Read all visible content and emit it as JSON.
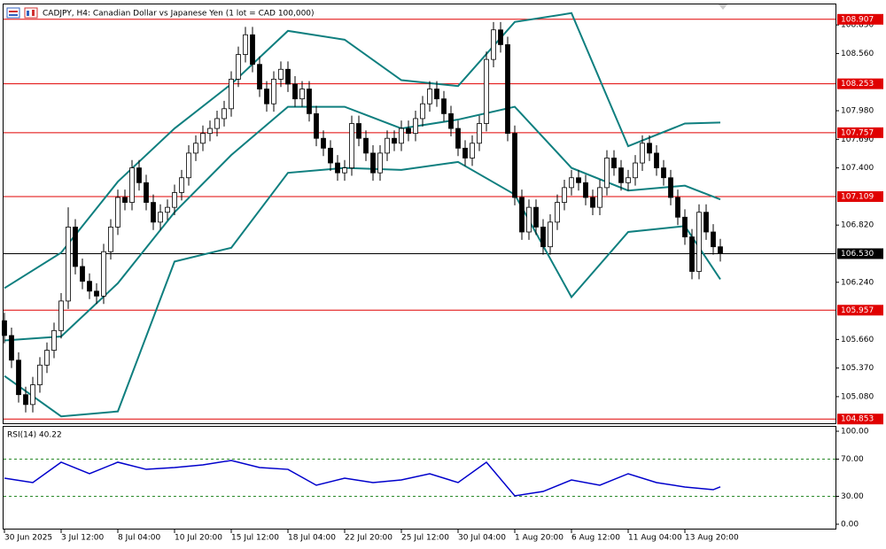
{
  "chart_data": [
    {
      "type": "candlestick",
      "title": "CADJPY, H4:  Canadian Dollar vs Japanese Yen (1 lot = CAD 100,000)",
      "up_color": "#ffffff",
      "down_color": "#000000",
      "open": [
        105.85,
        105.7,
        105.45,
        105.1,
        105.0,
        105.2,
        105.4,
        105.55,
        105.75,
        106.05,
        106.8,
        106.4,
        106.25,
        106.15,
        106.1,
        106.55,
        106.8,
        107.1,
        107.05,
        107.4,
        107.25,
        107.05,
        106.85,
        106.95,
        107.0,
        107.15,
        107.3,
        107.55,
        107.65,
        107.75,
        107.8,
        107.9,
        108.0,
        108.3,
        108.55,
        108.75,
        108.45,
        108.2,
        108.05,
        108.3,
        108.4,
        108.25,
        108.1,
        108.2,
        107.95,
        107.7,
        107.6,
        107.45,
        107.35,
        107.4,
        107.85,
        107.7,
        107.55,
        107.35,
        107.55,
        107.7,
        107.65,
        107.8,
        107.75,
        107.9,
        108.05,
        108.2,
        108.1,
        107.95,
        107.8,
        107.6,
        107.5,
        107.65,
        107.85,
        108.5,
        108.8,
        108.65,
        107.75,
        107.1,
        106.75,
        107.0,
        106.8,
        106.6,
        106.85,
        107.05,
        107.2,
        107.3,
        107.25,
        107.1,
        107.0,
        107.2,
        107.5,
        107.4,
        107.25,
        107.3,
        107.45,
        107.65,
        107.55,
        107.4,
        107.3,
        107.1,
        106.9,
        106.7,
        106.35,
        106.95,
        106.75,
        106.6
      ],
      "high": [
        105.93,
        105.78,
        105.53,
        105.18,
        105.28,
        105.48,
        105.63,
        105.83,
        106.13,
        107.0,
        106.88,
        106.48,
        106.33,
        106.23,
        106.63,
        106.88,
        107.18,
        107.18,
        107.48,
        107.48,
        107.33,
        107.13,
        107.03,
        107.08,
        107.23,
        107.38,
        107.63,
        107.73,
        107.83,
        107.88,
        107.98,
        108.08,
        108.38,
        108.63,
        108.83,
        108.83,
        108.53,
        108.28,
        108.38,
        108.48,
        108.48,
        108.33,
        108.28,
        108.28,
        108.03,
        107.78,
        107.68,
        107.53,
        107.48,
        107.93,
        107.93,
        107.78,
        107.63,
        107.63,
        107.78,
        107.78,
        107.88,
        107.88,
        107.98,
        108.13,
        108.28,
        108.28,
        108.18,
        108.03,
        107.88,
        107.68,
        107.73,
        107.93,
        108.58,
        108.88,
        108.88,
        108.73,
        107.83,
        107.18,
        107.08,
        107.08,
        106.88,
        106.93,
        107.13,
        107.28,
        107.38,
        107.38,
        107.33,
        107.18,
        107.28,
        107.58,
        107.58,
        107.48,
        107.38,
        107.53,
        107.73,
        107.73,
        107.63,
        107.48,
        107.38,
        107.18,
        106.98,
        106.78,
        107.03,
        107.03,
        106.83,
        106.68
      ],
      "low": [
        105.62,
        105.37,
        105.02,
        104.92,
        104.92,
        105.12,
        105.32,
        105.47,
        105.67,
        105.97,
        106.32,
        106.17,
        106.07,
        106.02,
        106.02,
        106.47,
        106.72,
        106.97,
        106.97,
        107.17,
        106.97,
        106.77,
        106.77,
        106.87,
        106.92,
        107.07,
        107.22,
        107.47,
        107.57,
        107.67,
        107.72,
        107.82,
        107.92,
        108.22,
        108.47,
        108.37,
        108.12,
        107.97,
        107.97,
        108.22,
        108.17,
        108.02,
        108.02,
        107.87,
        107.62,
        107.52,
        107.37,
        107.27,
        107.27,
        107.32,
        107.62,
        107.47,
        107.27,
        107.27,
        107.47,
        107.57,
        107.57,
        107.67,
        107.67,
        107.82,
        107.97,
        108.02,
        107.87,
        107.72,
        107.52,
        107.42,
        107.42,
        107.57,
        107.77,
        108.42,
        108.57,
        107.67,
        107.02,
        106.67,
        106.67,
        106.72,
        106.52,
        106.52,
        106.77,
        106.97,
        107.12,
        107.17,
        107.02,
        106.92,
        106.92,
        107.12,
        107.32,
        107.17,
        107.17,
        107.22,
        107.37,
        107.47,
        107.32,
        107.22,
        107.02,
        106.82,
        106.62,
        106.27,
        106.27,
        106.67,
        106.52,
        106.45
      ],
      "close": [
        105.7,
        105.45,
        105.1,
        105.0,
        105.2,
        105.4,
        105.55,
        105.75,
        106.05,
        106.8,
        106.4,
        106.25,
        106.15,
        106.1,
        106.55,
        106.8,
        107.1,
        107.05,
        107.4,
        107.25,
        107.05,
        106.85,
        106.95,
        107.0,
        107.15,
        107.3,
        107.55,
        107.65,
        107.75,
        107.8,
        107.9,
        108.0,
        108.3,
        108.55,
        108.75,
        108.45,
        108.2,
        108.05,
        108.3,
        108.4,
        108.25,
        108.1,
        108.2,
        107.95,
        107.7,
        107.6,
        107.45,
        107.35,
        107.4,
        107.85,
        107.7,
        107.55,
        107.35,
        107.55,
        107.7,
        107.65,
        107.8,
        107.75,
        107.9,
        108.05,
        108.2,
        108.1,
        107.95,
        107.8,
        107.6,
        107.5,
        107.65,
        107.85,
        108.5,
        108.8,
        108.65,
        107.75,
        107.1,
        106.75,
        107.0,
        106.8,
        106.6,
        106.85,
        107.05,
        107.2,
        107.3,
        107.25,
        107.1,
        107.0,
        107.2,
        107.5,
        107.4,
        107.25,
        107.3,
        107.45,
        107.65,
        107.55,
        107.4,
        107.3,
        107.1,
        106.9,
        106.7,
        106.35,
        106.95,
        106.75,
        106.6,
        106.53
      ],
      "bands": {
        "color": "#0f7f7f",
        "x": [
          0,
          8,
          16,
          24,
          32,
          40,
          48,
          56,
          64,
          72,
          80,
          88,
          96,
          101
        ],
        "upper": [
          106.18,
          106.54,
          107.26,
          107.8,
          108.25,
          108.79,
          108.7,
          108.29,
          108.23,
          108.88,
          108.97,
          107.62,
          107.85,
          107.86
        ],
        "middle": [
          105.65,
          105.69,
          106.23,
          106.95,
          107.53,
          108.02,
          108.02,
          107.8,
          107.89,
          108.02,
          107.4,
          107.17,
          107.22,
          107.08
        ],
        "lower": [
          105.29,
          104.88,
          104.93,
          106.45,
          106.59,
          107.35,
          107.4,
          107.38,
          107.46,
          107.13,
          106.09,
          106.75,
          106.81,
          106.27
        ]
      },
      "levels": [
        {
          "value": 108.907,
          "label": "108.907",
          "color": "#e00000"
        },
        {
          "value": 108.253,
          "label": "108.253",
          "color": "#e00000"
        },
        {
          "value": 107.757,
          "label": "107.757",
          "color": "#e00000"
        },
        {
          "value": 107.109,
          "label": "107.109",
          "color": "#e00000"
        },
        {
          "value": 106.53,
          "label": "106.530",
          "color": "#000000"
        },
        {
          "value": 105.957,
          "label": "105.957",
          "color": "#e00000"
        },
        {
          "value": 104.853,
          "label": "104.853",
          "color": "#e00000"
        }
      ],
      "ylim": [
        104.81,
        109.04
      ],
      "yticks": [
        {
          "value": 108.85,
          "label": "108.850"
        },
        {
          "value": 108.56,
          "label": "108.560"
        },
        {
          "value": 107.98,
          "label": "107.980"
        },
        {
          "value": 107.69,
          "label": "107.690"
        },
        {
          "value": 107.4,
          "label": "107.400"
        },
        {
          "value": 106.82,
          "label": "106.820"
        },
        {
          "value": 106.24,
          "label": "106.240"
        },
        {
          "value": 105.66,
          "label": "105.660"
        },
        {
          "value": 105.37,
          "label": "105.370"
        },
        {
          "value": 105.08,
          "label": "105.080"
        }
      ],
      "xticks": [
        {
          "value": 0,
          "label": "30 Jun 2025"
        },
        {
          "value": 8,
          "label": "3 Jul 12:00"
        },
        {
          "value": 16,
          "label": "8 Jul 04:00"
        },
        {
          "value": 24,
          "label": "10 Jul 20:00"
        },
        {
          "value": 32,
          "label": "15 Jul 12:00"
        },
        {
          "value": 40,
          "label": "18 Jul 04:00"
        },
        {
          "value": 48,
          "label": "22 Jul 20:00"
        },
        {
          "value": 56,
          "label": "25 Jul 12:00"
        },
        {
          "value": 64,
          "label": "30 Jul 04:00"
        },
        {
          "value": 72,
          "label": "1 Aug 20:00"
        },
        {
          "value": 80,
          "label": "6 Aug 12:00"
        },
        {
          "value": 88,
          "label": "11 Aug 04:00"
        },
        {
          "value": 96,
          "label": "13 Aug 20:00"
        }
      ]
    },
    {
      "type": "line",
      "title": "RSI(14) 40.22",
      "color": "#0000cc",
      "x": [
        0,
        4,
        8,
        12,
        16,
        20,
        24,
        28,
        32,
        36,
        40,
        44,
        48,
        52,
        56,
        60,
        64,
        68,
        72,
        76,
        80,
        84,
        88,
        92,
        96,
        100,
        101
      ],
      "values": [
        49.5,
        44.8,
        66.7,
        54.3,
        66.7,
        59.0,
        61.0,
        63.8,
        68.6,
        61.0,
        59.0,
        41.9,
        49.5,
        44.8,
        47.6,
        54.3,
        44.8,
        66.7,
        30.5,
        35.2,
        47.6,
        41.9,
        54.3,
        44.8,
        40.0,
        37.1,
        40.22
      ],
      "ylim": [
        0,
        100
      ],
      "yticks": [
        {
          "value": 100,
          "label": "100.00"
        },
        {
          "value": 70,
          "label": "70.00"
        },
        {
          "value": 30,
          "label": "30.00"
        },
        {
          "value": 0,
          "label": "0.00"
        }
      ],
      "levels": [
        70,
        30
      ]
    }
  ]
}
